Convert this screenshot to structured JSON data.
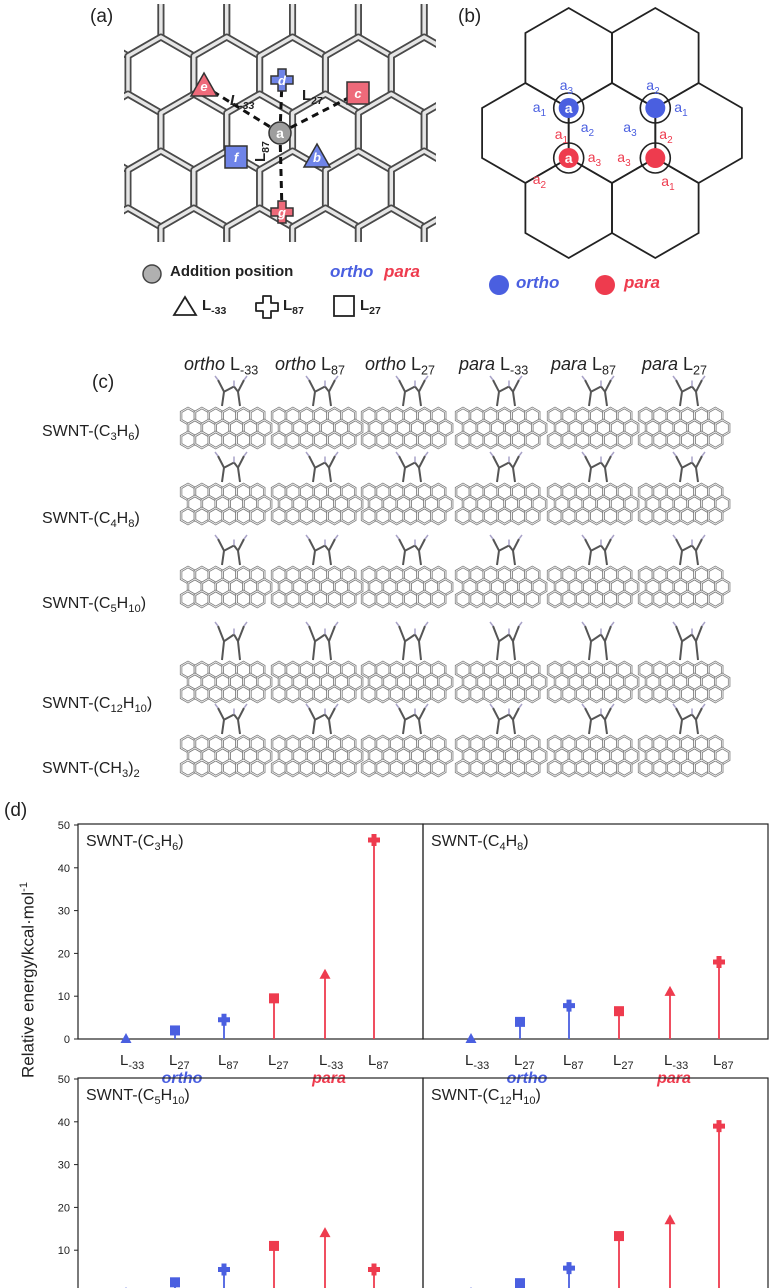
{
  "panel_labels": {
    "a": "(a)",
    "b": "(b)",
    "c": "(c)",
    "d": "(d)"
  },
  "panel_a": {
    "center": "a",
    "markers": [
      {
        "label": "e",
        "shape": "triangle",
        "color": "#ee6a7a"
      },
      {
        "label": "d",
        "shape": "plus",
        "color": "#6f84e8"
      },
      {
        "label": "c",
        "shape": "square",
        "color": "#ee6a7a"
      },
      {
        "label": "f",
        "shape": "square",
        "color": "#6f84e8"
      },
      {
        "label": "b",
        "shape": "triangle",
        "color": "#6f84e8"
      },
      {
        "label": "g",
        "shape": "plus",
        "color": "#ee6a7a"
      }
    ],
    "bond_labels": {
      "l33": "L",
      "l33_sub": "-33",
      "l27": "L",
      "l27_sub": "27",
      "l87": "L",
      "l87_sub": "87"
    },
    "legend": {
      "addition_position": "Addition position",
      "ortho": "ortho",
      "para": "para",
      "l33": "L",
      "l33_sub": "-33",
      "l87": "L",
      "l87_sub": "87",
      "l27": "L",
      "l27_sub": "27"
    }
  },
  "panel_b": {
    "atoms": {
      "a": "a"
    },
    "site_labels": {
      "a1": "a",
      "s1": "1",
      "a2": "a",
      "s2": "2",
      "a3": "a",
      "s3": "3"
    },
    "legend": {
      "ortho": "ortho",
      "para": "para"
    },
    "colors": {
      "ortho": "#4a5fe0",
      "para": "#ee3b4e"
    }
  },
  "panel_c": {
    "columns": [
      {
        "prefix": "ortho",
        "label": "L",
        "sub": "-33"
      },
      {
        "prefix": "ortho",
        "label": "L",
        "sub": "87"
      },
      {
        "prefix": "ortho",
        "label": "L",
        "sub": "27"
      },
      {
        "prefix": "para",
        "label": "L",
        "sub": "-33"
      },
      {
        "prefix": "para",
        "label": "L",
        "sub": "87"
      },
      {
        "prefix": "para",
        "label": "L",
        "sub": "27"
      }
    ],
    "rows": [
      {
        "pre": "SWNT-(C",
        "n1": "3",
        "mid": "H",
        "n2": "6",
        "post": ")"
      },
      {
        "pre": "SWNT-(C",
        "n1": "4",
        "mid": "H",
        "n2": "8",
        "post": ")"
      },
      {
        "pre": "SWNT-(C",
        "n1": "5",
        "mid": "H",
        "n2": "10",
        "post": ")"
      },
      {
        "pre": "SWNT-(C",
        "n1": "12",
        "mid": "H",
        "n2": "10",
        "post": ")"
      },
      {
        "pre": "SWNT-(CH",
        "n1": "3",
        "mid": ")",
        "n2": "2",
        "post": ""
      }
    ]
  },
  "chart_data": {
    "type": "bar",
    "ylabel": "Relative energy/kcal·mol",
    "ylabel_sup": "-1",
    "ylim": [
      0,
      50
    ],
    "yticks": [
      0,
      10,
      20,
      30,
      40,
      50
    ],
    "categories": [
      {
        "label": "L",
        "sub": "-33",
        "group": "ortho",
        "marker": "triangle"
      },
      {
        "label": "L",
        "sub": "27",
        "group": "ortho",
        "marker": "square"
      },
      {
        "label": "L",
        "sub": "87",
        "group": "ortho",
        "marker": "plus"
      },
      {
        "label": "L",
        "sub": "27",
        "group": "para",
        "marker": "square"
      },
      {
        "label": "L",
        "sub": "-33",
        "group": "para",
        "marker": "triangle"
      },
      {
        "label": "L",
        "sub": "87",
        "group": "para",
        "marker": "plus"
      }
    ],
    "group_labels": {
      "ortho": "ortho",
      "para": "para"
    },
    "colors": {
      "ortho": "#4a5fe0",
      "para": "#ee3b4e"
    },
    "panels": [
      {
        "title_pre": "SWNT-(C",
        "n1": "3",
        "title_mid": "H",
        "n2": "6",
        "title_post": ")",
        "values": [
          0,
          2,
          4.5,
          9.5,
          15,
          46.5
        ]
      },
      {
        "title_pre": "SWNT-(C",
        "n1": "4",
        "title_mid": "H",
        "n2": "8",
        "title_post": ")",
        "values": [
          0,
          4,
          7.8,
          6.5,
          11,
          18
        ]
      },
      {
        "title_pre": "SWNT-(C",
        "n1": "5",
        "title_mid": "H",
        "n2": "10",
        "title_post": ")",
        "values": [
          0,
          2.5,
          5.5,
          11,
          14,
          5.5
        ]
      },
      {
        "title_pre": "SWNT-(C",
        "n1": "12",
        "title_mid": "H",
        "n2": "10",
        "title_post": ")",
        "values": [
          0,
          2.3,
          5.8,
          13.3,
          17,
          39
        ]
      }
    ]
  }
}
